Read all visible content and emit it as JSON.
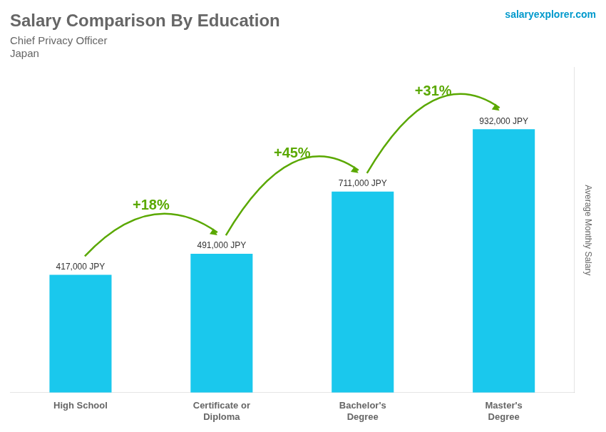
{
  "chart_data": {
    "type": "bar",
    "title": "Salary Comparison By Education",
    "subtitle": [
      "Chief Privacy Officer",
      "Japan"
    ],
    "annotations": [
      "salaryexplorer.com"
    ],
    "ylabel": "Average Monthly Salary",
    "categories": [
      "High School",
      "Certificate or\nDiploma",
      "Bachelor's\nDegree",
      "Master's\nDegree"
    ],
    "values": [
      417000,
      491000,
      711000,
      932000
    ],
    "value_labels": [
      "417,000 JPY",
      "491,000 JPY",
      "711,000 JPY",
      "932,000 JPY"
    ],
    "change_labels": [
      "+18%",
      "+45%",
      "+31%"
    ],
    "color": "#1ac8ed",
    "ylim": [
      0,
      1150000
    ],
    "grid": false,
    "data_labels": true,
    "tick_labels": "x"
  }
}
